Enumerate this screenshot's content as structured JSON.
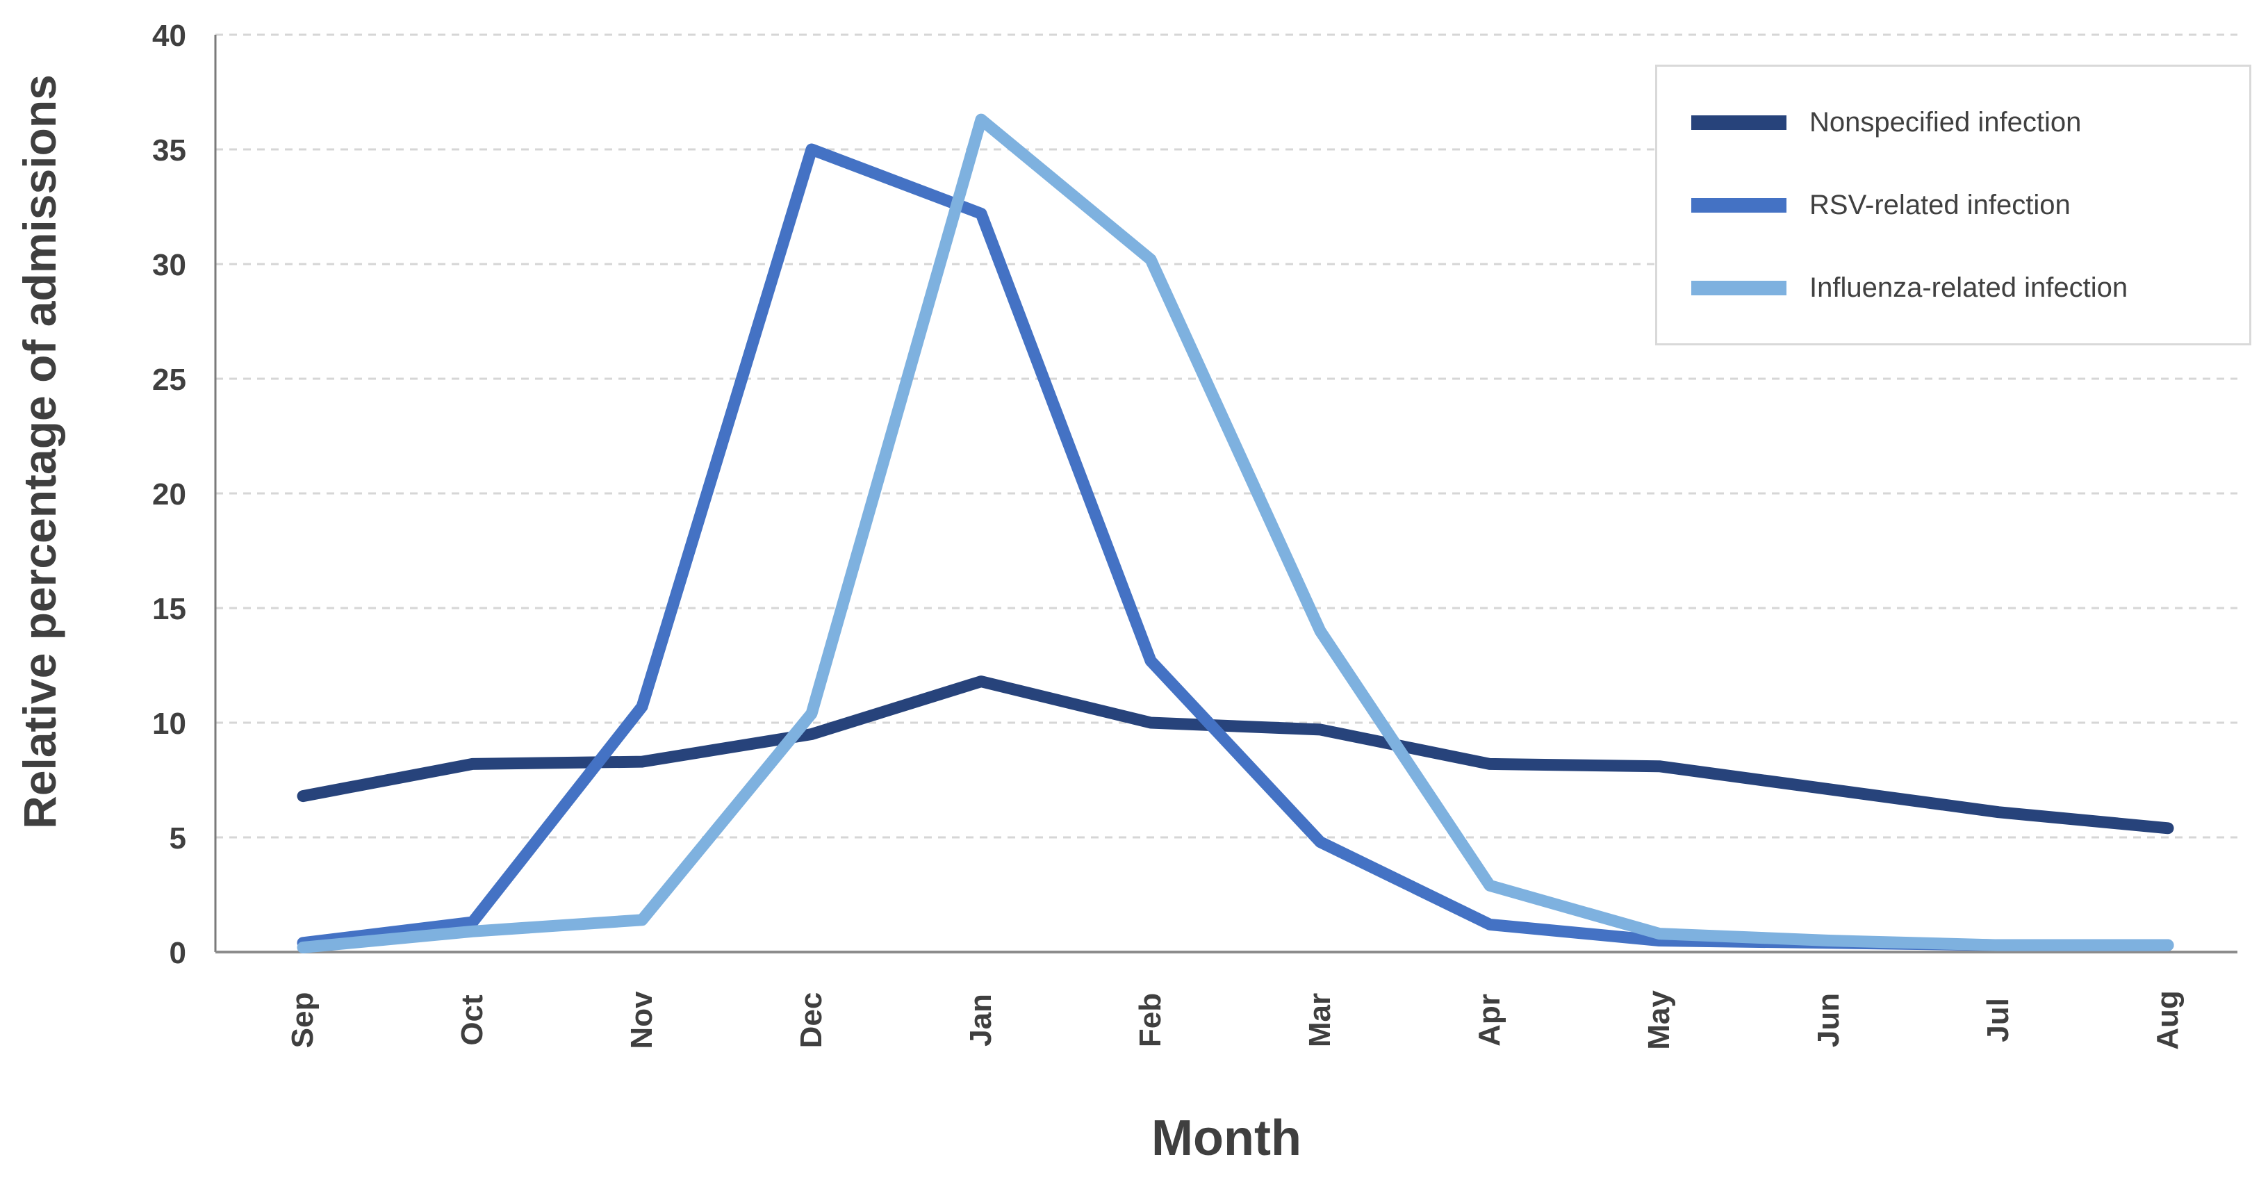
{
  "chart_data": {
    "type": "line",
    "title": "",
    "xlabel": "Month",
    "ylabel": "Relative percentage of admissions",
    "categories": [
      "Sep",
      "Oct",
      "Nov",
      "Dec",
      "Jan",
      "Feb",
      "Mar",
      "Apr",
      "May",
      "Jun",
      "Jul",
      "Aug"
    ],
    "ylim": [
      0,
      40
    ],
    "yticks": [
      0,
      5,
      10,
      15,
      20,
      25,
      30,
      35,
      40
    ],
    "grid": "horizontal-dashed",
    "legend_position": "top-right",
    "text_color": "#3F3F3F",
    "grid_color": "#D6D6D6",
    "axis_color": "#8C8C8C",
    "series": [
      {
        "name": "Nonspecified infection",
        "color": "#27437B",
        "values": [
          6.8,
          8.2,
          8.3,
          9.5,
          11.8,
          10.0,
          9.7,
          8.2,
          8.1,
          7.1,
          6.1,
          5.4
        ]
      },
      {
        "name": "RSV-related infection",
        "color": "#4472C4",
        "values": [
          0.4,
          1.3,
          10.7,
          35.0,
          32.2,
          12.7,
          4.8,
          1.2,
          0.5,
          0.4,
          0.3,
          0.3
        ]
      },
      {
        "name": "Influenza-related infection",
        "color": "#7EB1DF",
        "values": [
          0.2,
          0.9,
          1.4,
          10.4,
          36.3,
          30.2,
          14.0,
          2.9,
          0.8,
          0.5,
          0.3,
          0.3
        ]
      }
    ]
  }
}
